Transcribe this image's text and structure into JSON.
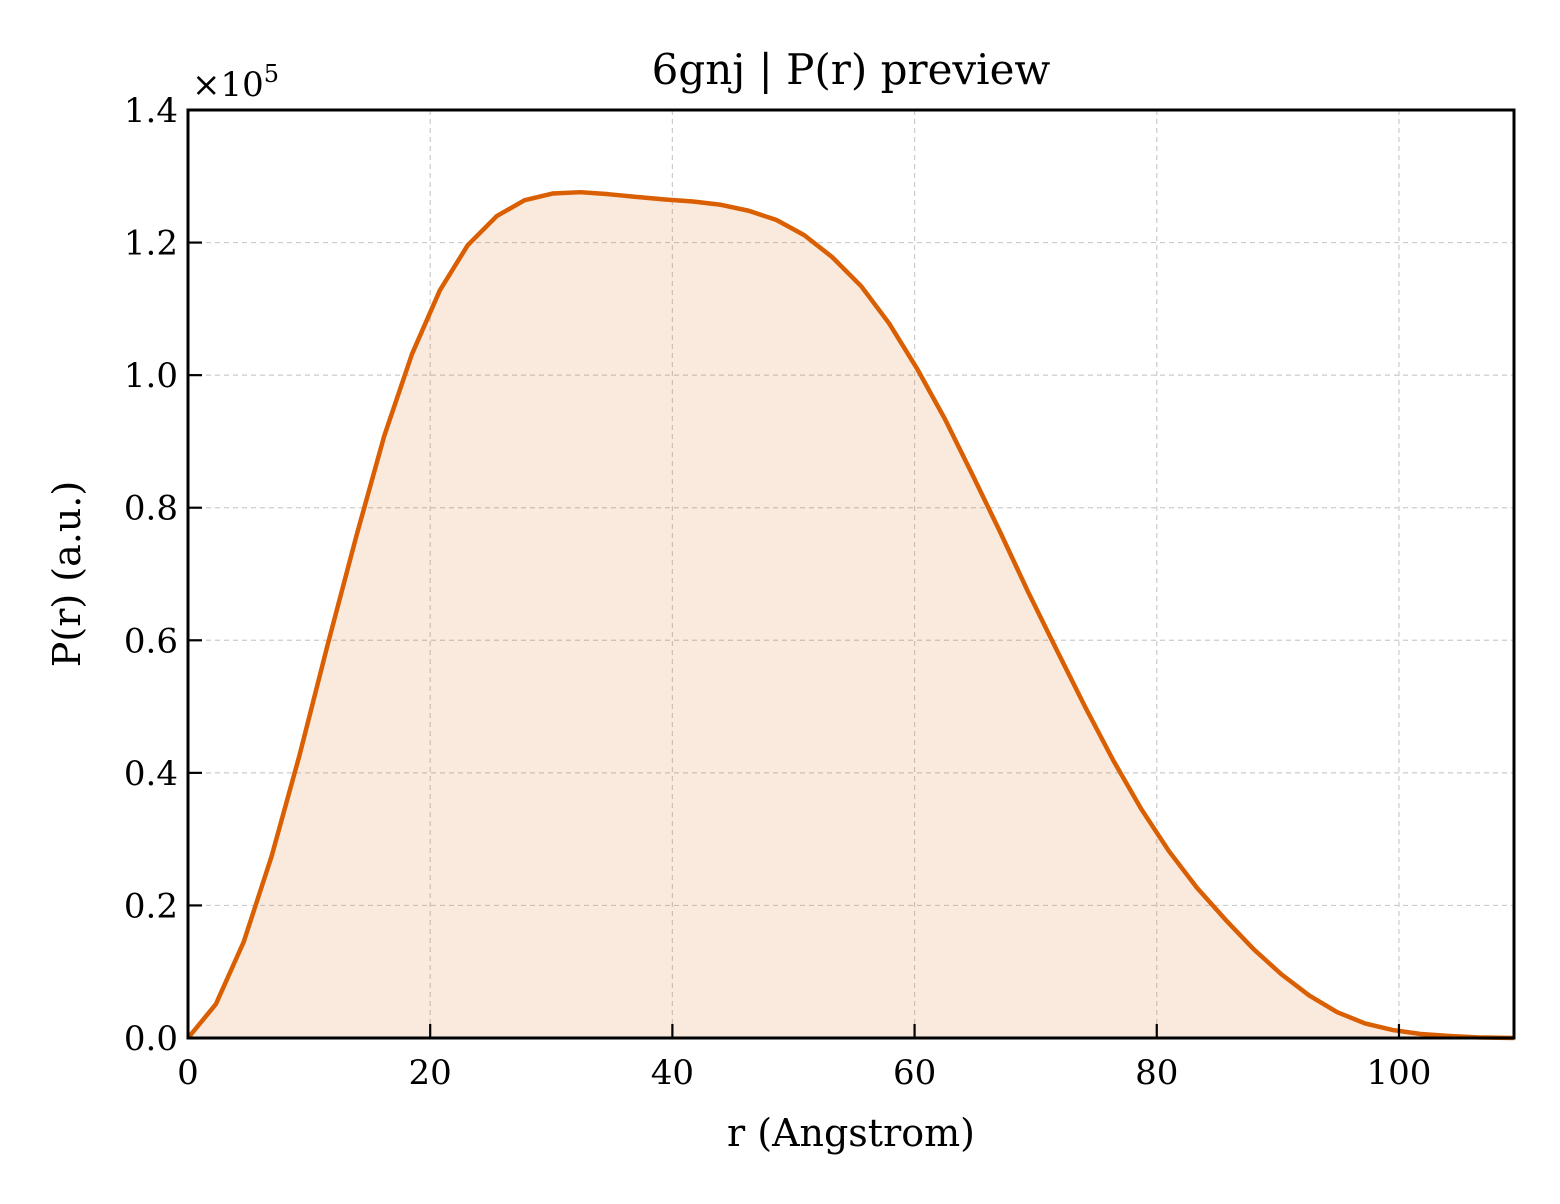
{
  "chart_data": {
    "type": "area",
    "title": "6gnj | P(r) preview",
    "xlabel": "r (Angstrom)",
    "ylabel": "P(r) (a.u.)",
    "y_scale_label": {
      "prefix": "×10",
      "exponent": "5"
    },
    "xlim": [
      0,
      109.5
    ],
    "ylim": [
      0,
      1.4
    ],
    "x_ticks": [
      0,
      20,
      40,
      60,
      80,
      100
    ],
    "x_tick_labels": [
      "0",
      "20",
      "40",
      "60",
      "80",
      "100"
    ],
    "y_ticks": [
      0.0,
      0.2,
      0.4,
      0.6,
      0.8,
      1.0,
      1.2,
      1.4
    ],
    "y_tick_labels": [
      "0.0",
      "0.2",
      "0.4",
      "0.6",
      "0.8",
      "1.0",
      "1.2",
      "1.4"
    ],
    "grid": true,
    "colors": {
      "line": "#d95f02",
      "fill": "#d95f02",
      "grid": "#cccccc"
    },
    "series": [
      {
        "x": [
          0,
          2.3,
          4.6,
          6.9,
          9.2,
          11.5,
          13.9,
          16.2,
          18.5,
          20.8,
          23.1,
          25.5,
          27.8,
          30.1,
          32.4,
          34.7,
          37.0,
          39.4,
          41.7,
          44.0,
          46.3,
          48.6,
          50.9,
          53.2,
          55.6,
          57.9,
          60.2,
          62.5,
          64.8,
          67.1,
          69.4,
          71.8,
          74.1,
          76.4,
          78.7,
          81.0,
          83.3,
          85.7,
          88.0,
          90.3,
          92.6,
          94.9,
          97.2,
          99.5,
          101.8,
          104.2,
          106.5,
          109.5
        ],
        "values": [
          0.0,
          0.051,
          0.145,
          0.274,
          0.426,
          0.591,
          0.757,
          0.908,
          1.032,
          1.128,
          1.196,
          1.24,
          1.264,
          1.274,
          1.276,
          1.273,
          1.269,
          1.265,
          1.262,
          1.257,
          1.248,
          1.234,
          1.211,
          1.178,
          1.134,
          1.078,
          1.01,
          0.934,
          0.849,
          0.762,
          0.672,
          0.583,
          0.499,
          0.419,
          0.346,
          0.282,
          0.227,
          0.178,
          0.134,
          0.096,
          0.064,
          0.039,
          0.022,
          0.012,
          0.006,
          0.003,
          0.001,
          0.0
        ]
      }
    ]
  }
}
